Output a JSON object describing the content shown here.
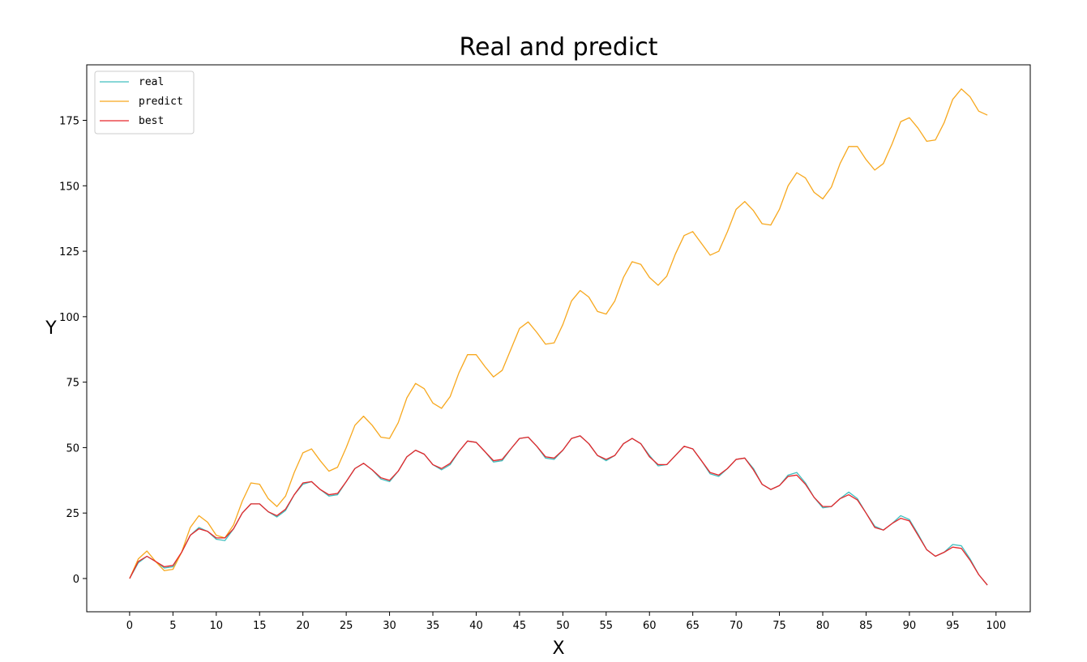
{
  "chart_data": {
    "type": "line",
    "title": "Real and predict",
    "xlabel": "X",
    "ylabel": "Y",
    "xlim": [
      -4.95,
      103.95
    ],
    "ylim": [
      -12.7,
      196.2
    ],
    "xticks": [
      0,
      5,
      10,
      15,
      20,
      25,
      30,
      35,
      40,
      45,
      50,
      55,
      60,
      65,
      70,
      75,
      80,
      85,
      90,
      95,
      100
    ],
    "yticks": [
      0,
      25,
      50,
      75,
      100,
      125,
      150,
      175
    ],
    "legend_position": "top-left",
    "x": [
      0,
      1,
      2,
      3,
      4,
      5,
      6,
      7,
      8,
      9,
      10,
      11,
      12,
      13,
      14,
      15,
      16,
      17,
      18,
      19,
      20,
      21,
      22,
      23,
      24,
      25,
      26,
      27,
      28,
      29,
      30,
      31,
      32,
      33,
      34,
      35,
      36,
      37,
      38,
      39,
      40,
      41,
      42,
      43,
      44,
      45,
      46,
      47,
      48,
      49,
      50,
      51,
      52,
      53,
      54,
      55,
      56,
      57,
      58,
      59,
      60,
      61,
      62,
      63,
      64,
      65,
      66,
      67,
      68,
      69,
      70,
      71,
      72,
      73,
      74,
      75,
      76,
      77,
      78,
      79,
      80,
      81,
      82,
      83,
      84,
      85,
      86,
      87,
      88,
      89,
      90,
      91,
      92,
      93,
      94,
      95,
      96,
      97,
      98,
      99
    ],
    "series": [
      {
        "name": "real",
        "color": "#40bfbf",
        "values": [
          0,
          6,
          8.5,
          6.5,
          4,
          4.5,
          10,
          16.5,
          19.5,
          18,
          15,
          14.5,
          19,
          25,
          28.5,
          28.5,
          25.5,
          23.5,
          26,
          32,
          36,
          37,
          34,
          31.5,
          32,
          37,
          42,
          44,
          41.5,
          38,
          37,
          41,
          46.5,
          49,
          47.5,
          43.5,
          41.5,
          43.5,
          48.5,
          52.5,
          52,
          48.5,
          44.5,
          45,
          49.5,
          53.5,
          54,
          50.5,
          46,
          45.5,
          49,
          53.5,
          54.5,
          51.5,
          47,
          45,
          47,
          51.5,
          53.5,
          51.5,
          47,
          43,
          43.5,
          47,
          50.5,
          49.5,
          45,
          40,
          39,
          42,
          45.5,
          46,
          42,
          36,
          34,
          35.5,
          39.5,
          40.5,
          36.5,
          31,
          27,
          27.5,
          30.5,
          33,
          30.5,
          25,
          20,
          18.5,
          21,
          24,
          22.5,
          17,
          11,
          8.5,
          10,
          13,
          12.5,
          7.5,
          1.5,
          -2.5
        ]
      },
      {
        "name": "predict",
        "color": "#f7a81e",
        "values": [
          0,
          7.5,
          10.5,
          6.5,
          3,
          3.5,
          10,
          19.5,
          24,
          21.5,
          16.5,
          15.5,
          20.5,
          29.5,
          36.5,
          36,
          30.5,
          27.5,
          31.5,
          40.5,
          48,
          49.5,
          45,
          41,
          42.5,
          50,
          58.5,
          62,
          58.5,
          54,
          53.5,
          59.5,
          69,
          74.5,
          72.5,
          67,
          65,
          69.5,
          78.5,
          85.5,
          85.5,
          81,
          77,
          79.5,
          87.5,
          95.5,
          98,
          94,
          89.5,
          90,
          97,
          106,
          110,
          107.5,
          102,
          101,
          106,
          115,
          121,
          120,
          115,
          112,
          115.5,
          124,
          131,
          132.5,
          128,
          123.5,
          125,
          132.5,
          141,
          144,
          140.5,
          135.5,
          135,
          141,
          150,
          155,
          153,
          147.5,
          145,
          149.5,
          158.5,
          165,
          165,
          160,
          156,
          158.5,
          166,
          174.5,
          176,
          172,
          167,
          167.5,
          174,
          183,
          187,
          184,
          178.5,
          177
        ]
      },
      {
        "name": "best",
        "color": "#e6262a",
        "values": [
          0,
          6.5,
          8.5,
          6.5,
          4.5,
          5,
          10,
          16.5,
          19,
          18,
          15.5,
          15.5,
          19,
          25,
          28.5,
          28.5,
          25.5,
          24,
          26.5,
          32,
          36.5,
          37,
          34,
          32,
          32.5,
          37,
          42,
          44,
          41.5,
          38.5,
          37.5,
          41,
          46.5,
          49,
          47.5,
          43.5,
          42,
          44,
          48.5,
          52.5,
          52,
          48.5,
          45,
          45.5,
          49.5,
          53.5,
          54,
          50.5,
          46.5,
          46,
          49,
          53.5,
          54.5,
          51.5,
          47,
          45.5,
          47,
          51.5,
          53.5,
          51.5,
          46.5,
          43.5,
          43.5,
          47,
          50.5,
          49.5,
          45,
          40.5,
          39.5,
          42,
          45.5,
          46,
          41.5,
          36,
          34,
          35.5,
          39,
          39.5,
          36,
          31,
          27.5,
          27.5,
          30.5,
          32,
          30,
          25,
          19.5,
          18.5,
          21,
          23,
          22,
          16.5,
          11,
          8.5,
          10,
          12,
          11.5,
          7,
          1.5,
          -2.5
        ]
      }
    ]
  }
}
